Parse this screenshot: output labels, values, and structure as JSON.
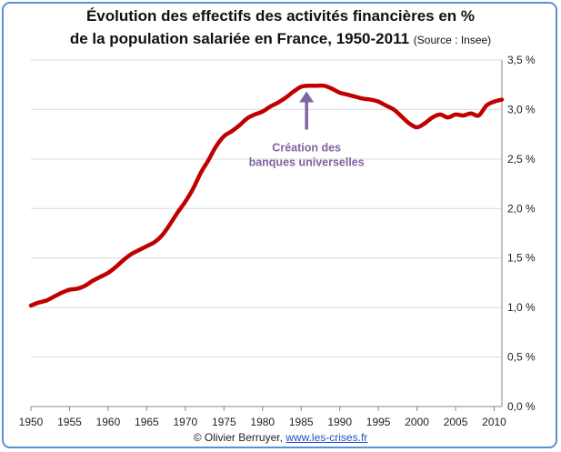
{
  "title_line1": "Évolution des effectifs des activités financières en %",
  "title_line2": "de la population salariée en France, 1950-2011",
  "source": "(Source : Insee)",
  "footer": {
    "author": "© Olivier Berruyer,",
    "link": "www.les-crises.fr"
  },
  "colors": {
    "series": "#c00000",
    "annotation": "#8064a2",
    "frame": "#5b8fd6",
    "grid": "#d9d9d9"
  },
  "chart_data": {
    "type": "line",
    "title": "Évolution des effectifs des activités financières en % de la population salariée en France, 1950-2011",
    "xlabel": "",
    "ylabel": "",
    "xlim": [
      1950,
      2011
    ],
    "ylim": [
      0,
      3.5
    ],
    "x_ticks": [
      "1950",
      "1955",
      "1960",
      "1965",
      "1970",
      "1975",
      "1980",
      "1985",
      "1990",
      "1995",
      "2000",
      "2005",
      "2010"
    ],
    "y_ticks": [
      "0,0 %",
      "0,5 %",
      "1,0 %",
      "1,5 %",
      "2,0 %",
      "2,5 %",
      "3,0 %",
      "3,5 %"
    ],
    "y_axis_side": "right",
    "grid": "horizontal",
    "legend": "none",
    "series": [
      {
        "x": [
          1950,
          1951,
          1952,
          1953,
          1954,
          1955,
          1956,
          1957,
          1958,
          1959,
          1960,
          1961,
          1962,
          1963,
          1964,
          1965,
          1966,
          1967,
          1968,
          1969,
          1970,
          1971,
          1972,
          1973,
          1974,
          1975,
          1976,
          1977,
          1978,
          1979,
          1980,
          1981,
          1982,
          1983,
          1984,
          1985,
          1986,
          1987,
          1988,
          1989,
          1990,
          1991,
          1992,
          1993,
          1994,
          1995,
          1996,
          1997,
          1998,
          1999,
          2000,
          2001,
          2002,
          2003,
          2004,
          2005,
          2006,
          2007,
          2008,
          2009,
          2010,
          2011
        ],
        "values": [
          1.02,
          1.05,
          1.07,
          1.11,
          1.15,
          1.18,
          1.19,
          1.22,
          1.27,
          1.31,
          1.35,
          1.41,
          1.48,
          1.54,
          1.58,
          1.62,
          1.66,
          1.73,
          1.84,
          1.96,
          2.07,
          2.2,
          2.36,
          2.49,
          2.63,
          2.73,
          2.78,
          2.84,
          2.91,
          2.95,
          2.98,
          3.03,
          3.07,
          3.12,
          3.18,
          3.23,
          3.24,
          3.24,
          3.24,
          3.21,
          3.17,
          3.15,
          3.13,
          3.11,
          3.1,
          3.08,
          3.04,
          3.0,
          2.93,
          2.86,
          2.82,
          2.86,
          2.92,
          2.95,
          2.92,
          2.95,
          2.94,
          2.96,
          2.94,
          3.04,
          3.08,
          3.1
        ]
      }
    ],
    "annotations": [
      {
        "text_line1": "Création des",
        "text_line2": "banques universelles",
        "x": 1985.7,
        "y": 3.22
      }
    ]
  }
}
